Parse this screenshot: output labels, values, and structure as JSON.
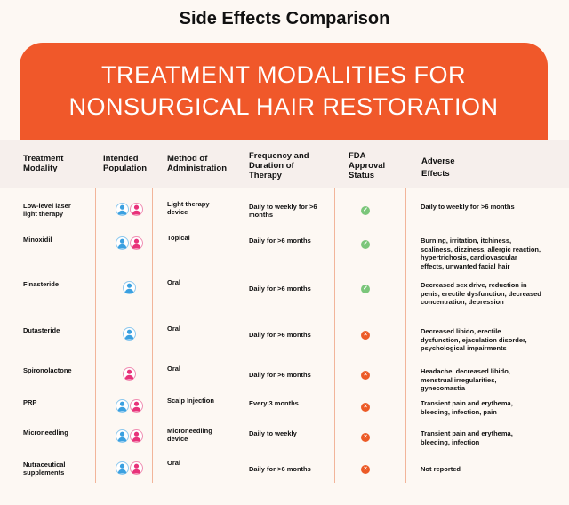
{
  "title": "Side Effects Comparison",
  "banner": {
    "line1": "TREATMENT MODALITIES FOR",
    "line2": "NONSURGICAL  HAIR RESTORATION"
  },
  "headers": [
    "Treatment Modality",
    "Intended Population",
    "Method of Administration",
    "Frequency and Duration of Therapy",
    "FDA Approval Status",
    "Adverse Effects"
  ],
  "colors": {
    "accent": "#f0582a",
    "male": "#3aa0e0",
    "female": "#e8327a",
    "approved": "#7bc67a",
    "not_approved": "#ec5a26"
  },
  "rows": [
    {
      "name": "Low-level laser light therapy",
      "population": [
        "male",
        "female"
      ],
      "method": "Light therapy device",
      "frequency": "Daily to weekly for >6 months",
      "fda": "approved",
      "adverse": "Daily to weekly for >6 months"
    },
    {
      "name": "Minoxidil",
      "population": [
        "male",
        "female"
      ],
      "method": "Topical",
      "frequency": "Daily for >6 months",
      "fda": "approved",
      "adverse": "Burning, irritation, itchiness, scaliness, dizziness, allergic reaction, hypertrichosis, cardiovascular effects, unwanted facial hair"
    },
    {
      "name": "Finasteride",
      "population": [
        "male"
      ],
      "method": "Oral",
      "frequency": "Daily for >6 months",
      "fda": "approved",
      "adverse": "Decreased sex drive, reduction in penis, erectile dysfunction, decreased concentration, depression"
    },
    {
      "name": "Dutasteride",
      "population": [
        "male"
      ],
      "method": "Oral",
      "frequency": "Daily for >6 months",
      "fda": "not_approved",
      "adverse": "Decreased libido, erectile dysfunction, ejaculation disorder, psychological impairments"
    },
    {
      "name": "Spironolactone",
      "population": [
        "female"
      ],
      "method": "Oral",
      "frequency": "Daily for >6 months",
      "fda": "not_approved",
      "adverse": "Headache, decreased libido, menstrual irregularities, gynecomastia"
    },
    {
      "name": "PRP",
      "population": [
        "male",
        "female"
      ],
      "method": "Scalp Injection",
      "frequency": "Every 3 months",
      "fda": "not_approved",
      "adverse": "Transient pain and erythema, bleeding, infection, pain"
    },
    {
      "name": "Microneedling",
      "population": [
        "male",
        "female"
      ],
      "method": "Microneedling device",
      "frequency": "Daily to weekly",
      "fda": "not_approved",
      "adverse": "Transient pain and erythema, bleeding, infection"
    },
    {
      "name": "Nutraceutical supplements",
      "population": [
        "male",
        "female"
      ],
      "method": "Oral",
      "frequency": "Daily for >6 months",
      "fda": "not_approved",
      "adverse": "Not reported"
    }
  ]
}
